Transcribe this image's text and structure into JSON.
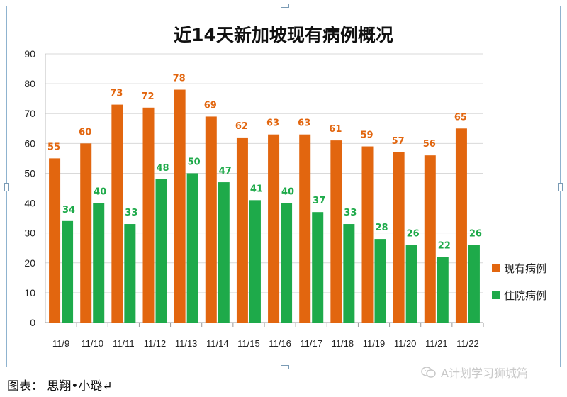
{
  "chart_data": {
    "type": "bar",
    "title": "近14天新加坡现有病例概况",
    "categories": [
      "11/9",
      "11/10",
      "11/11",
      "11/12",
      "11/13",
      "11/14",
      "11/15",
      "11/16",
      "11/17",
      "11/18",
      "11/19",
      "11/20",
      "11/21",
      "11/22"
    ],
    "series": [
      {
        "name": "现有病例",
        "color": "#e2660f",
        "values": [
          55,
          60,
          73,
          72,
          78,
          69,
          62,
          63,
          63,
          61,
          59,
          57,
          56,
          65
        ]
      },
      {
        "name": "住院病例",
        "color": "#1eaa4a",
        "values": [
          34,
          40,
          33,
          48,
          50,
          47,
          41,
          40,
          37,
          33,
          28,
          26,
          22,
          26
        ]
      }
    ],
    "ylim": [
      0,
      90
    ],
    "yticks": [
      0,
      10,
      20,
      30,
      40,
      50,
      60,
      70,
      80,
      90
    ],
    "grid": true,
    "legend_position": "right"
  },
  "caption": "图表： 思翔•小璐↵",
  "watermark": {
    "text": "A计划学习狮城篇",
    "icon": "wechat-icon"
  }
}
